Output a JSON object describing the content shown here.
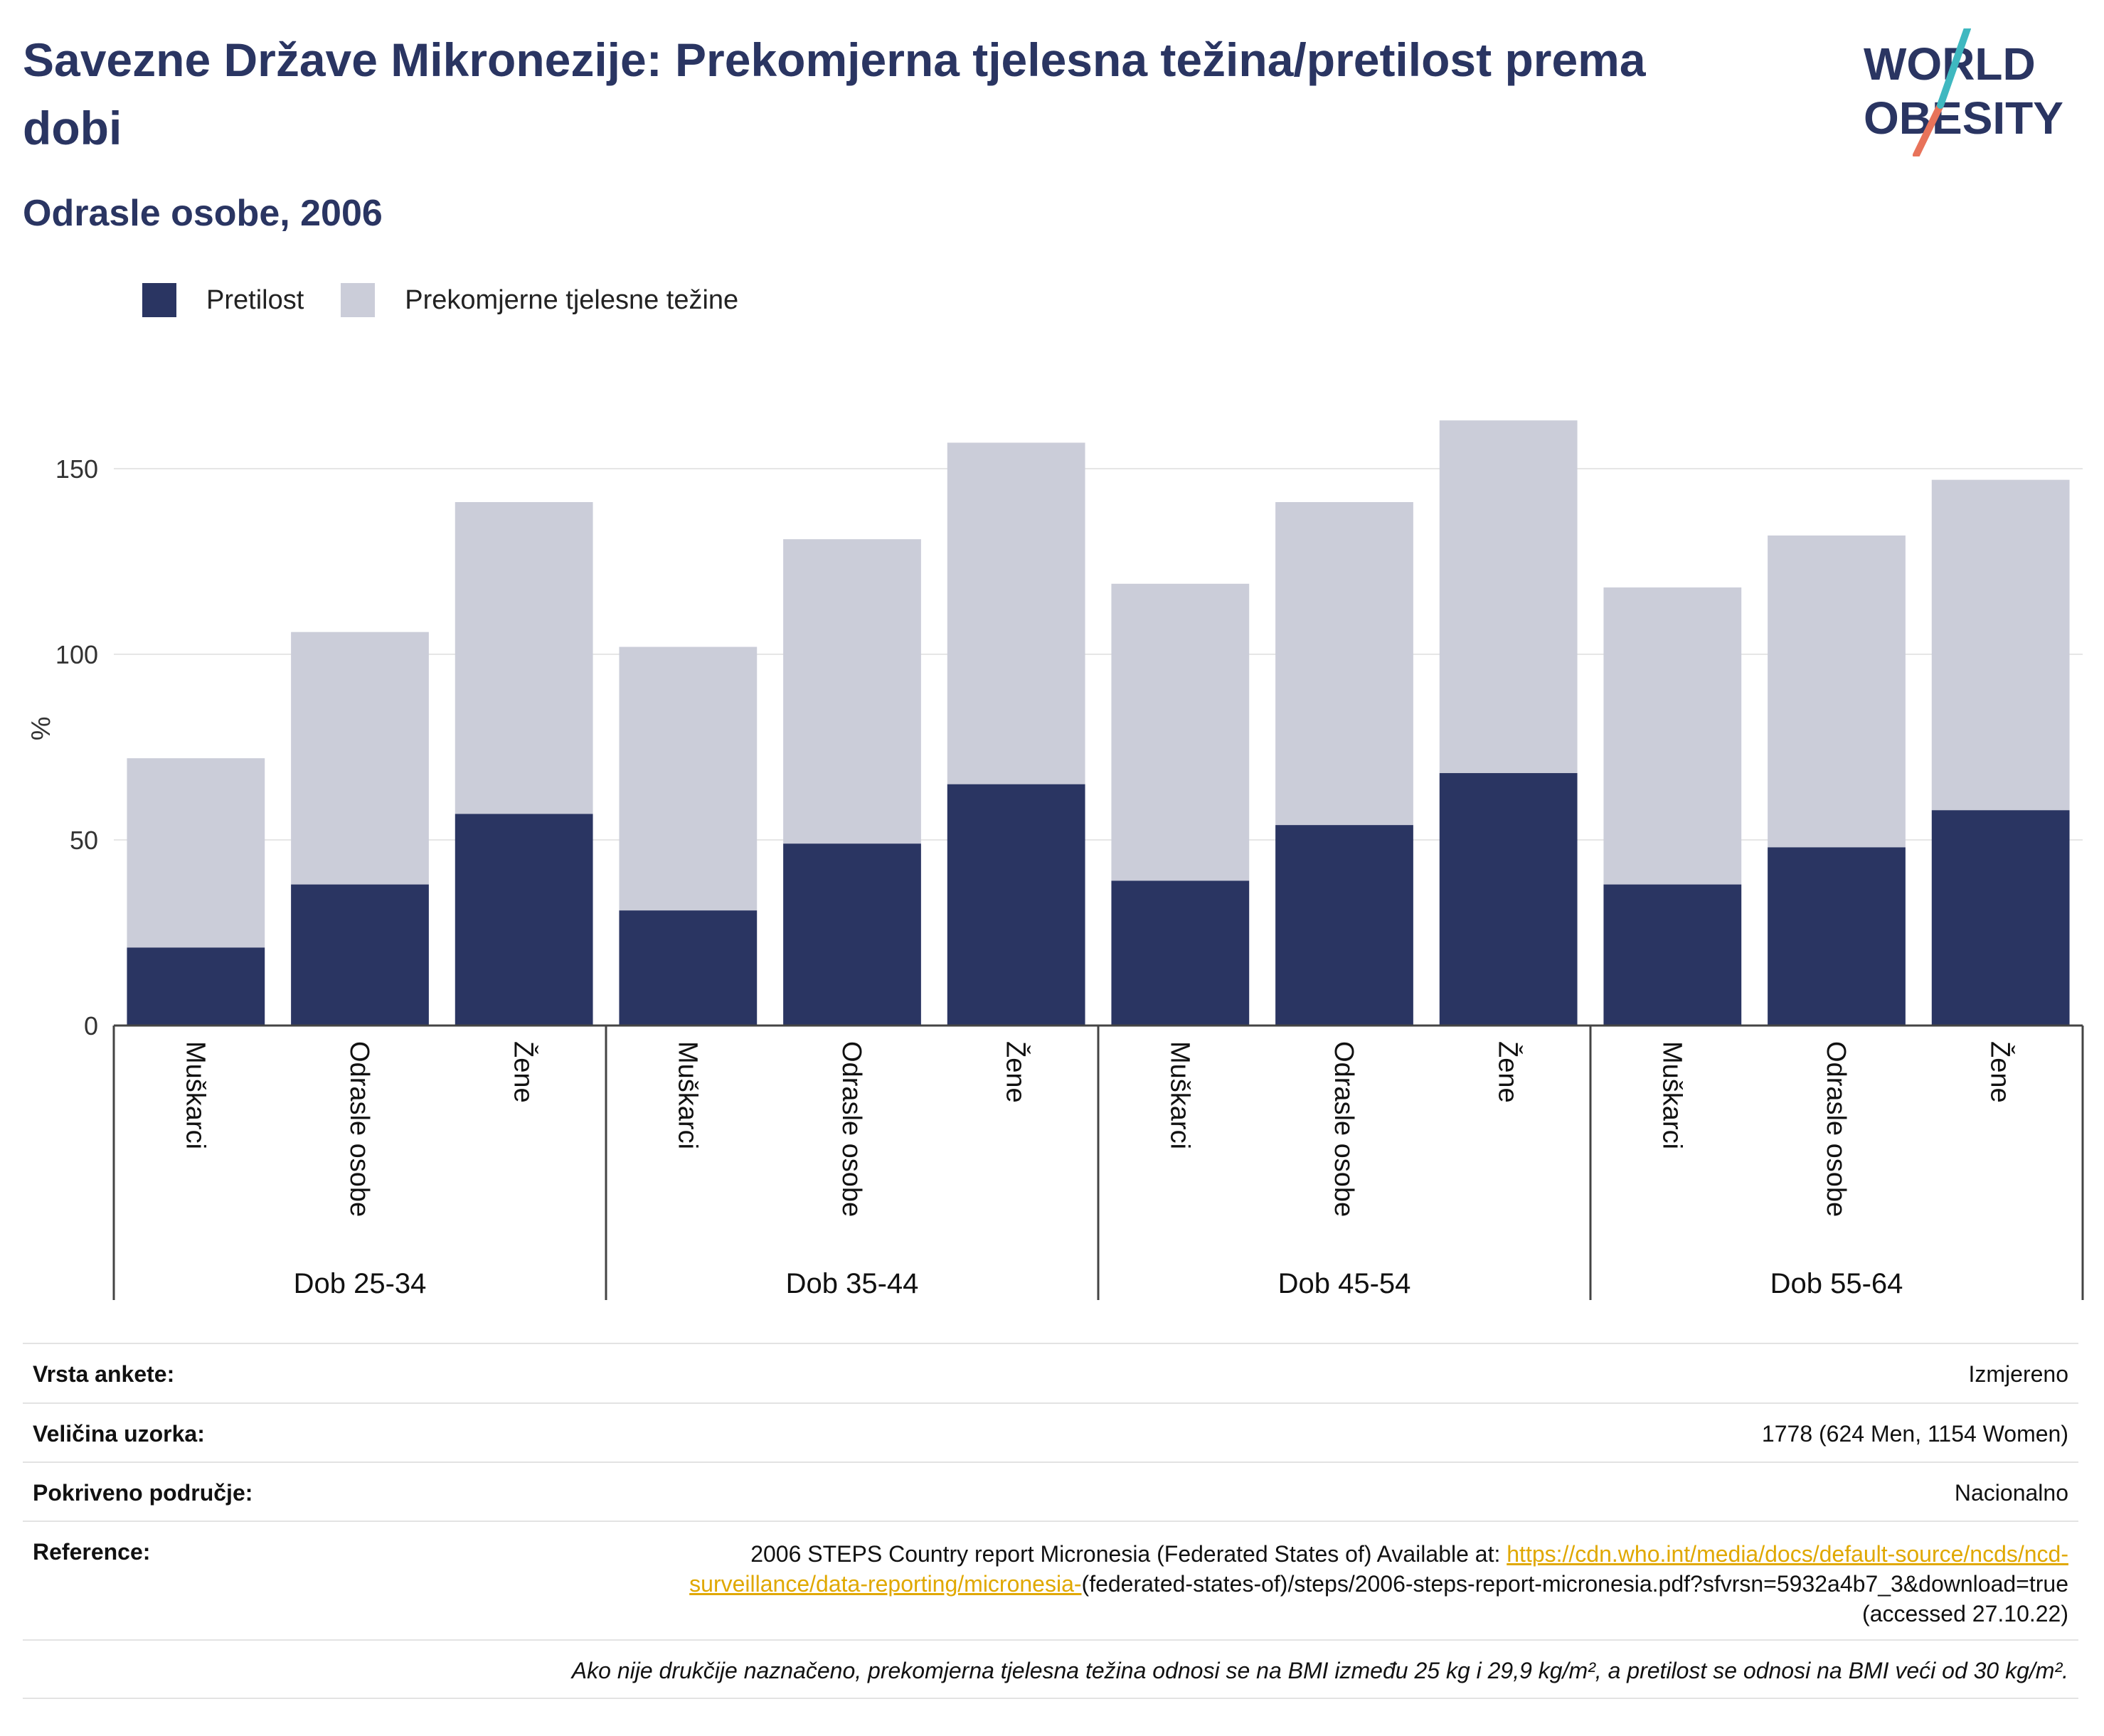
{
  "title": "Savezne Države Mikronezije: Prekomjerna tjelesna težina/pretilost prema dobi",
  "subtitle": "Odrasle osobe, 2006",
  "logo": {
    "line1": "WORLD",
    "line2": "OBESITY"
  },
  "colors": {
    "obesity": "#2a3562",
    "overweight": "#cbcdd9",
    "title": "#2a3562",
    "link": "#e0a800"
  },
  "legend": [
    {
      "label": "Pretilost",
      "color": "#2a3562"
    },
    {
      "label": "Prekomjerne tjelesne težine",
      "color": "#cbcdd9"
    }
  ],
  "chart_data": {
    "type": "bar",
    "stacked": true,
    "ylabel": "%",
    "ylim": [
      0,
      170
    ],
    "yticks": [
      0,
      50,
      100,
      150
    ],
    "grid": true,
    "legend_position": "top-left",
    "groups": [
      {
        "label": "Dob 25-34",
        "categories": [
          "Muškarci",
          "Odrasle osobe",
          "Žene"
        ]
      },
      {
        "label": "Dob 35-44",
        "categories": [
          "Muškarci",
          "Odrasle osobe",
          "Žene"
        ]
      },
      {
        "label": "Dob 45-54",
        "categories": [
          "Muškarci",
          "Odrasle osobe",
          "Žene"
        ]
      },
      {
        "label": "Dob 55-64",
        "categories": [
          "Muškarci",
          "Odrasle osobe",
          "Žene"
        ]
      }
    ],
    "series": [
      {
        "name": "Pretilost",
        "values": [
          21,
          38,
          57,
          31,
          49,
          65,
          39,
          54,
          68,
          38,
          48,
          58
        ]
      },
      {
        "name": "Prekomjerne tjelesne težine",
        "values": [
          51,
          68,
          84,
          71,
          82,
          92,
          80,
          87,
          95,
          80,
          84,
          89
        ]
      }
    ]
  },
  "info": {
    "survey_type": {
      "label": "Vrsta ankete:",
      "value": "Izmjereno"
    },
    "sample_size": {
      "label": "Veličina uzorka:",
      "value": "1778 (624 Men, 1154 Women)"
    },
    "area": {
      "label": "Pokriveno područje:",
      "value": "Nacionalno"
    },
    "reference": {
      "label": "Reference:",
      "text_before": "2006 STEPS Country report Micronesia (Federated States of) Available at: ",
      "link": "https://cdn.who.int/media/docs/default-source/ncds/ncd-surveillance/data-reporting/micronesia-",
      "text_after": "(federated-states-of)/steps/2006-steps-report-micronesia.pdf?sfvrsn=5932a4b7_3&download=true (accessed 27.10.22)"
    },
    "note": "Ako nije drukčije naznačeno, prekomjerna tjelesna težina odnosi se na BMI između 25 kg i 29,9 kg/m², a pretilost se odnosi na BMI veći od 30 kg/m²."
  }
}
